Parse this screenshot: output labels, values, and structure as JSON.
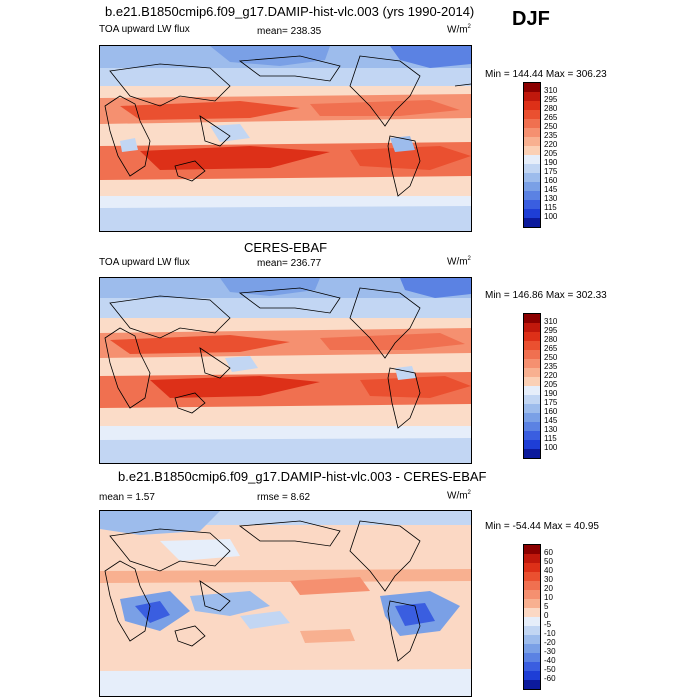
{
  "season": "DJF",
  "panels": [
    {
      "title": "b.e21.B1850cmip6.f09_g17.DAMIP-hist-vlc.003 (yrs 1990-2014)",
      "left_label": "TOA upward LW flux",
      "center_label": "mean= 238.35",
      "units": "W/m",
      "units_sup": "2",
      "minmax": "Min = 144.44 Max = 306.23",
      "colorbar": {
        "levels": [
          "310",
          "295",
          "280",
          "265",
          "250",
          "235",
          "220",
          "205",
          "190",
          "175",
          "160",
          "145",
          "130",
          "115",
          "100"
        ],
        "colors": [
          "#8b0000",
          "#c0180c",
          "#dd3018",
          "#ea5030",
          "#f07050",
          "#f59070",
          "#f8b090",
          "#fbd0b5",
          "#e6eefa",
          "#c2d6f3",
          "#9dbcec",
          "#7aa0e6",
          "#5b82e3",
          "#3a5ee0",
          "#1e3ed6",
          "#0c1a9c"
        ]
      }
    },
    {
      "title": "CERES-EBAF",
      "left_label": "TOA upward LW flux",
      "center_label": "mean= 236.77",
      "units": "W/m",
      "units_sup": "2",
      "minmax": "Min = 146.86 Max = 302.33",
      "colorbar": {
        "levels": [
          "310",
          "295",
          "280",
          "265",
          "250",
          "235",
          "220",
          "205",
          "190",
          "175",
          "160",
          "145",
          "130",
          "115",
          "100"
        ],
        "colors": [
          "#8b0000",
          "#c0180c",
          "#dd3018",
          "#ea5030",
          "#f07050",
          "#f59070",
          "#f8b090",
          "#fbd0b5",
          "#e6eefa",
          "#c2d6f3",
          "#9dbcec",
          "#7aa0e6",
          "#5b82e3",
          "#3a5ee0",
          "#1e3ed6",
          "#0c1a9c"
        ]
      }
    },
    {
      "title": "b.e21.B1850cmip6.f09_g17.DAMIP-hist-vlc.003 - CERES-EBAF",
      "left_label": "mean =  1.57",
      "center_label": "rmse =  8.62",
      "units": "W/m",
      "units_sup": "2",
      "minmax": "Min = -54.44 Max =  40.95",
      "colorbar": {
        "levels": [
          "60",
          "50",
          "40",
          "30",
          "20",
          "10",
          "5",
          "0",
          "-5",
          "-10",
          "-20",
          "-30",
          "-40",
          "-50",
          "-60"
        ],
        "colors": [
          "#8b0000",
          "#c0180c",
          "#dd3018",
          "#ea5030",
          "#f07050",
          "#f59070",
          "#f8b090",
          "#fbd8c4",
          "#e6eefa",
          "#c2d6f3",
          "#9dbcec",
          "#7aa0e6",
          "#5b82e3",
          "#3a5ee0",
          "#1e3ed6",
          "#0c1a9c"
        ]
      }
    }
  ]
}
